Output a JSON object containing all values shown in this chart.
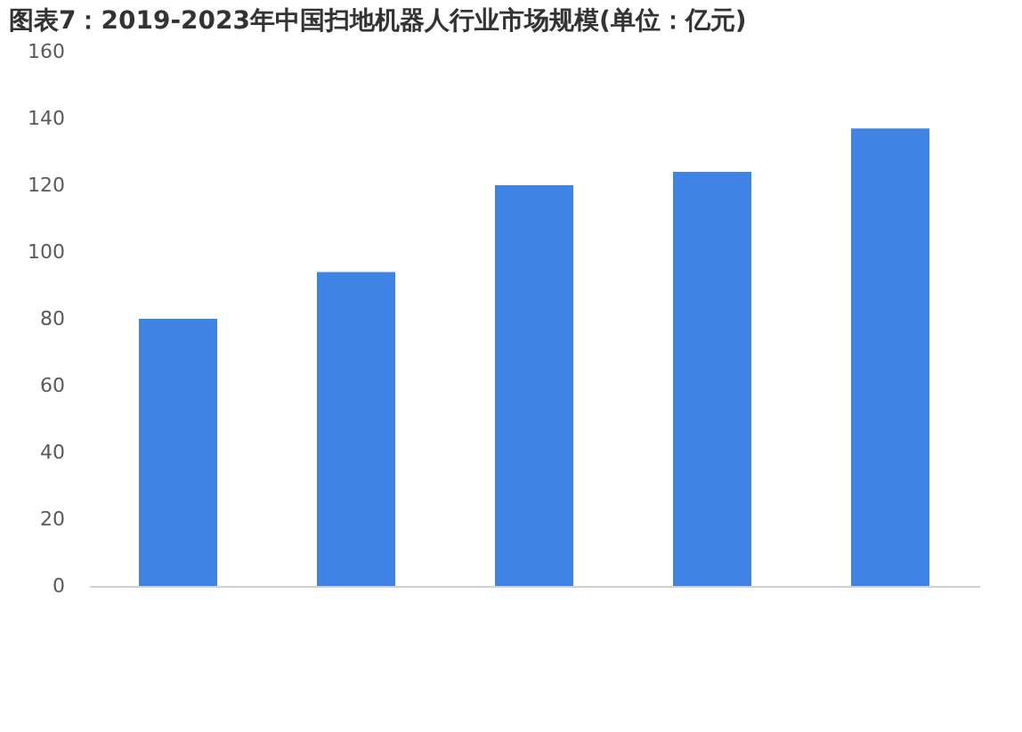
{
  "chart_data": {
    "type": "bar",
    "title": "图表7：2019-2023年中国扫地机器人行业市场规模(单位：亿元)",
    "categories": [
      null,
      null,
      null,
      null,
      null
    ],
    "values": [
      80,
      94,
      120,
      124,
      137
    ],
    "color": "#3f84e5",
    "ylim": [
      0,
      160
    ],
    "yticks": [
      0,
      20,
      40,
      60,
      80,
      100,
      120,
      140,
      160
    ],
    "grid": false,
    "tick_labels": "y"
  }
}
